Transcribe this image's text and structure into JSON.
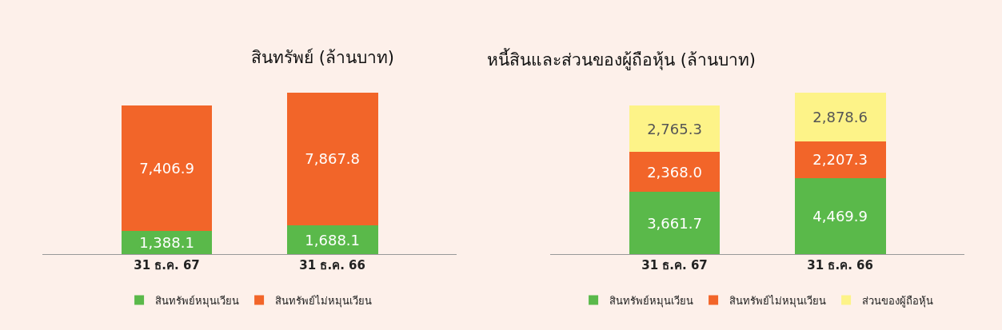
{
  "chart_data": [
    {
      "type": "bar",
      "title": "สินทรัพย์ (ล้านบาท)",
      "stacked": true,
      "legend": "bottom",
      "categories": [
        "31 ธ.ค. 67",
        "31 ธ.ค. 66"
      ],
      "series": [
        {
          "name": "สินทรัพย์หมุนเวียน",
          "color": "#5ab94a",
          "values": [
            1388.1,
            1688.1
          ],
          "value_labels": [
            "1,388.1",
            "1,688.1"
          ]
        },
        {
          "name": "สินทรัพย์ไม่หมุนเวียน",
          "color": "#f26529",
          "values": [
            7406.9,
            7867.8
          ],
          "value_labels": [
            "7,406.9",
            "7,867.8"
          ]
        }
      ]
    },
    {
      "type": "bar",
      "title": "หนี้สินและส่วนของผู้ถือหุ้น (ล้านบาท)",
      "stacked": true,
      "legend": "bottom",
      "categories": [
        "31 ธ.ค. 67",
        "31 ธ.ค. 66"
      ],
      "series": [
        {
          "name": "สินทรัพย์หมุนเวียน",
          "color": "#5ab94a",
          "values": [
            3661.7,
            4469.9
          ],
          "value_labels": [
            "3,661.7",
            "4,469.9"
          ]
        },
        {
          "name": "สินทรัพย์ไม่หมุนเวียน",
          "color": "#f26529",
          "values": [
            2368.0,
            2207.3
          ],
          "value_labels": [
            "2,368.0",
            "2,207.3"
          ]
        },
        {
          "name": "ส่วนของผู้ถือหุ้น",
          "color": "#fdf388",
          "values": [
            2765.3,
            2878.6
          ],
          "value_labels": [
            "2,765.3",
            "2,878.6"
          ]
        }
      ]
    }
  ]
}
